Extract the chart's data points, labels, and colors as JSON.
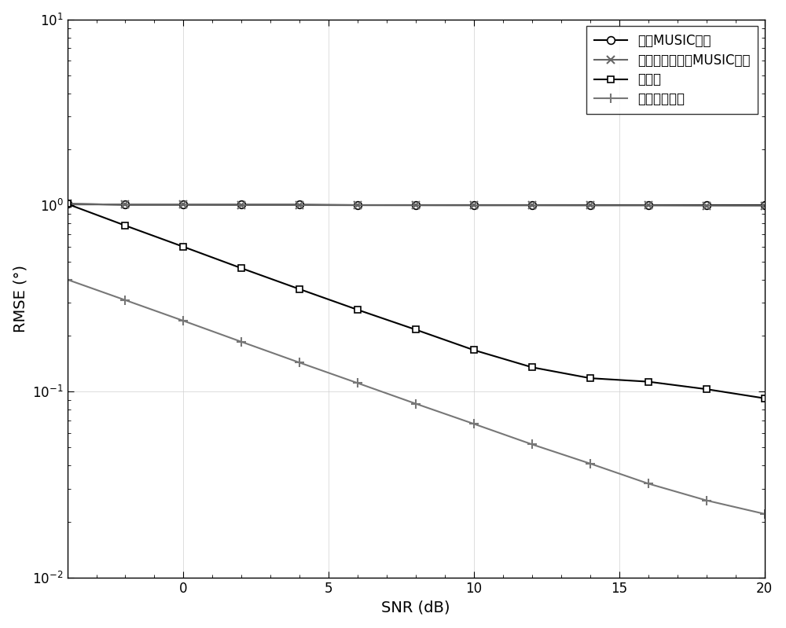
{
  "snr": [
    -4,
    -2,
    0,
    2,
    4,
    6,
    8,
    10,
    12,
    14,
    16,
    18,
    20
  ],
  "traditional_music": [
    1.02,
    1.01,
    1.01,
    1.01,
    1.01,
    1.005,
    1.005,
    1.005,
    1.005,
    1.005,
    1.005,
    1.005,
    1.005
  ],
  "known_error_music": [
    1.02,
    1.01,
    1.01,
    1.005,
    1.005,
    1.003,
    1.002,
    1.001,
    1.001,
    1.0,
    1.0,
    0.998,
    0.997
  ],
  "this_invention": [
    1.02,
    0.78,
    0.6,
    0.46,
    0.355,
    0.275,
    0.215,
    0.167,
    0.135,
    0.118,
    0.113,
    0.103,
    0.092
  ],
  "cramer_rao": [
    0.4,
    0.31,
    0.24,
    0.185,
    0.143,
    0.111,
    0.086,
    0.067,
    0.052,
    0.041,
    0.032,
    0.026,
    0.022
  ],
  "legend_labels": [
    "传统MUSIC算法",
    "已知幅相误差的MUSIC算法",
    "本发明",
    "克拉美罗下界"
  ],
  "xlabel": "SNR (dB)",
  "ylabel": "RMSE (°)",
  "xlim": [
    -4,
    20
  ],
  "ylim": [
    0.01,
    10
  ],
  "colors": [
    "#000000",
    "#666666",
    "#000000",
    "#777777"
  ],
  "linewidths": [
    1.5,
    1.5,
    1.5,
    1.5
  ],
  "markers": [
    "o",
    "x",
    "s",
    "+"
  ],
  "markersizes": [
    7,
    7,
    6,
    9
  ],
  "background_color": "#ffffff",
  "xticks": [
    0,
    5,
    10,
    15,
    20
  ],
  "font_size": 14
}
